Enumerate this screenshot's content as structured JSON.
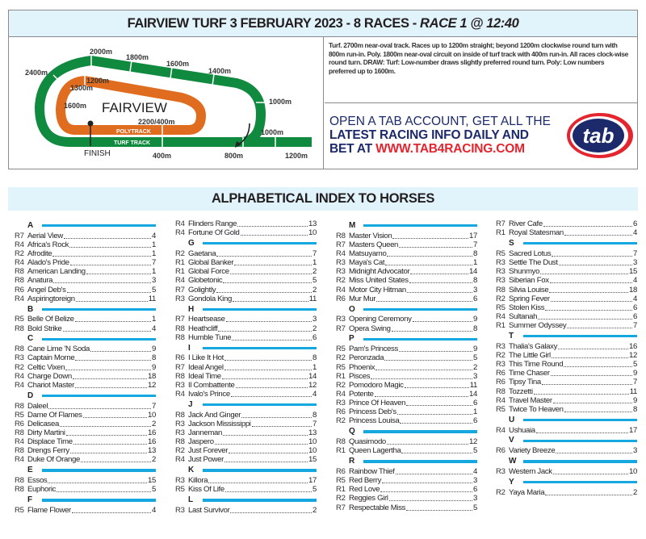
{
  "header": {
    "title_main": "FAIRVIEW TURF 3 FEBRUARY 2023 - 8 RACES - ",
    "title_race": "RACE 1 @ 12:40"
  },
  "track_map": {
    "venue": "FAIRVIEW",
    "turf_label": "TURF TRACK",
    "poly_label": "POLYTRACK",
    "finish_label": "FINISH",
    "colors": {
      "turf": "#0f8a3e",
      "poly": "#e06c1f"
    },
    "turf_markers": [
      "2400m",
      "2000m",
      "1800m",
      "1600m",
      "1400m",
      "1000m",
      "1000m",
      "1200m",
      "800m",
      "400m"
    ],
    "poly_markers": [
      "1200m",
      "1300m",
      "1600m",
      "2200/400m"
    ]
  },
  "track_info": "Turf. 2700m near-oval track. Races up to 1200m straight; beyond 1200m clockwise round turn with 800m run-in. Poly. 1800m near-oval circuit on inside of turf track with 400m run-in. All races clock-wise round turn. DRAW: Turf: Low-number draws slightly preferred round turn. Poly: Low numbers preferred up to 1600m.",
  "ad": {
    "line1": "OPEN A TAB ACCOUNT, GET ALL THE",
    "line2": "LATEST RACING INFO DAILY AND",
    "line3_prefix": "BET AT ",
    "url": "WWW.TAB4RACING.COM",
    "logo_text": "tab",
    "colors": {
      "navy": "#1c2a6b",
      "red": "#e4252f"
    }
  },
  "index": {
    "title": "ALPHABETICAL INDEX TO HORSES",
    "columns": [
      [
        {
          "letter": "A",
          "horses": [
            {
              "race": "R7",
              "name": "Aerial View",
              "no": "4"
            },
            {
              "race": "R4",
              "name": "Africa's Rock",
              "no": "1"
            },
            {
              "race": "R2",
              "name": "Afrodite",
              "no": "1"
            },
            {
              "race": "R4",
              "name": "Alado's Pride",
              "no": "7"
            },
            {
              "race": "R8",
              "name": "American Landing",
              "no": "1"
            },
            {
              "race": "R8",
              "name": "Anatura",
              "no": "3"
            },
            {
              "race": "R6",
              "name": "Angel Deb's",
              "no": "5"
            },
            {
              "race": "R4",
              "name": "Aspiringtoreign",
              "no": "11"
            }
          ]
        },
        {
          "letter": "B",
          "horses": [
            {
              "race": "R5",
              "name": "Belle Of Belize",
              "no": "1"
            },
            {
              "race": "R8",
              "name": "Bold Strike",
              "no": "4"
            }
          ]
        },
        {
          "letter": "C",
          "horses": [
            {
              "race": "R8",
              "name": "Cane Lime 'N Soda",
              "no": "9"
            },
            {
              "race": "R3",
              "name": "Captain Morne",
              "no": "8"
            },
            {
              "race": "R2",
              "name": "Celtic Vixen",
              "no": "9"
            },
            {
              "race": "R4",
              "name": "Charge Down",
              "no": "18"
            },
            {
              "race": "R4",
              "name": "Chariot Master",
              "no": "12"
            }
          ]
        },
        {
          "letter": "D",
          "horses": [
            {
              "race": "R8",
              "name": "Daleel",
              "no": "7"
            },
            {
              "race": "R5",
              "name": "Dame Of Flames",
              "no": "10"
            },
            {
              "race": "R6",
              "name": "Delicasea",
              "no": "2"
            },
            {
              "race": "R8",
              "name": "Dirty Martini",
              "no": "16"
            },
            {
              "race": "R4",
              "name": "Displace Time",
              "no": "16"
            },
            {
              "race": "R8",
              "name": "Drengs Ferry",
              "no": "13"
            },
            {
              "race": "R4",
              "name": "Duke Of Orange",
              "no": "2"
            }
          ]
        },
        {
          "letter": "E",
          "horses": [
            {
              "race": "R8",
              "name": "Essos",
              "no": "15"
            },
            {
              "race": "R8",
              "name": "Euphoric",
              "no": "5"
            }
          ]
        },
        {
          "letter": "F",
          "horses": [
            {
              "race": "R5",
              "name": "Flame Flower",
              "no": "4"
            }
          ]
        }
      ],
      [
        {
          "letter": "",
          "horses": [
            {
              "race": "R4",
              "name": "Flinders Range",
              "no": "13"
            },
            {
              "race": "R4",
              "name": "Fortune Of Gold",
              "no": "10"
            }
          ]
        },
        {
          "letter": "G",
          "horses": [
            {
              "race": "R2",
              "name": "Gaetana",
              "no": "7"
            },
            {
              "race": "R1",
              "name": "Global Banker",
              "no": "1"
            },
            {
              "race": "R1",
              "name": "Global Force",
              "no": "2"
            },
            {
              "race": "R4",
              "name": "Globetonic",
              "no": "5"
            },
            {
              "race": "R7",
              "name": "Golightly",
              "no": "2"
            },
            {
              "race": "R3",
              "name": "Gondola King",
              "no": "11"
            }
          ]
        },
        {
          "letter": "H",
          "horses": [
            {
              "race": "R7",
              "name": "Heartsease",
              "no": "3"
            },
            {
              "race": "R8",
              "name": "Heathcliff",
              "no": "2"
            },
            {
              "race": "R8",
              "name": "Humble Tune",
              "no": "6"
            }
          ]
        },
        {
          "letter": "I",
          "horses": [
            {
              "race": "R6",
              "name": "I Like It Hot",
              "no": "8"
            },
            {
              "race": "R7",
              "name": "Ideal Angel",
              "no": "1"
            },
            {
              "race": "R8",
              "name": "Ideal Time",
              "no": "14"
            },
            {
              "race": "R3",
              "name": "Il Combattente",
              "no": "12"
            },
            {
              "race": "R4",
              "name": "Ivalo's Prince",
              "no": "4"
            }
          ]
        },
        {
          "letter": "J",
          "horses": [
            {
              "race": "R8",
              "name": "Jack And Ginger",
              "no": "8"
            },
            {
              "race": "R3",
              "name": "Jackson Mississippi",
              "no": "7"
            },
            {
              "race": "R3",
              "name": "Janneman",
              "no": "13"
            },
            {
              "race": "R8",
              "name": "Jaspero",
              "no": "10"
            },
            {
              "race": "R2",
              "name": "Just Forever",
              "no": "10"
            },
            {
              "race": "R4",
              "name": "Just Power",
              "no": "15"
            }
          ]
        },
        {
          "letter": "K",
          "horses": [
            {
              "race": "R3",
              "name": "Killora",
              "no": "17"
            },
            {
              "race": "R5",
              "name": "Kiss Of Life",
              "no": "5"
            }
          ]
        },
        {
          "letter": "L",
          "horses": [
            {
              "race": "R3",
              "name": "Last Survivor",
              "no": "2"
            }
          ]
        }
      ],
      [
        {
          "letter": "M",
          "horses": [
            {
              "race": "R8",
              "name": "Master Vision",
              "no": "17"
            },
            {
              "race": "R7",
              "name": "Masters Queen",
              "no": "7"
            },
            {
              "race": "R4",
              "name": "Matsuyamo",
              "no": "8"
            },
            {
              "race": "R3",
              "name": "Maya's Cat",
              "no": "1"
            },
            {
              "race": "R3",
              "name": "Midnight Advocator",
              "no": "14"
            },
            {
              "race": "R2",
              "name": "Miss United States",
              "no": "8"
            },
            {
              "race": "R4",
              "name": "Motor City Hitman",
              "no": "3"
            },
            {
              "race": "R6",
              "name": "Mur Mur",
              "no": "6"
            }
          ]
        },
        {
          "letter": "O",
          "horses": [
            {
              "race": "R3",
              "name": "Opening Ceremony",
              "no": "9"
            },
            {
              "race": "R7",
              "name": "Opera Swing",
              "no": "8"
            }
          ]
        },
        {
          "letter": "P",
          "horses": [
            {
              "race": "R5",
              "name": "Pam's Princess",
              "no": "9"
            },
            {
              "race": "R2",
              "name": "Peronzada",
              "no": "5"
            },
            {
              "race": "R5",
              "name": "Phoenix",
              "no": "2"
            },
            {
              "race": "R1",
              "name": "Pisces",
              "no": "3"
            },
            {
              "race": "R2",
              "name": "Pomodoro Magic",
              "no": "11"
            },
            {
              "race": "R4",
              "name": "Potente",
              "no": "14"
            },
            {
              "race": "R3",
              "name": "Prince Of Heaven",
              "no": "6"
            },
            {
              "race": "R6",
              "name": "Princess Deb's",
              "no": "1"
            },
            {
              "race": "R2",
              "name": "Princess Louisa",
              "no": "6"
            }
          ]
        },
        {
          "letter": "Q",
          "horses": [
            {
              "race": "R8",
              "name": "Quasimodo",
              "no": "12"
            },
            {
              "race": "R1",
              "name": "Queen Lagertha",
              "no": "5"
            }
          ]
        },
        {
          "letter": "R",
          "horses": [
            {
              "race": "R6",
              "name": "Rainbow Thief",
              "no": "4"
            },
            {
              "race": "R5",
              "name": "Red Berry",
              "no": "3"
            },
            {
              "race": "R1",
              "name": "Red Love",
              "no": "6"
            },
            {
              "race": "R2",
              "name": "Reggies Girl",
              "no": "3"
            },
            {
              "race": "R7",
              "name": "Respectable Miss",
              "no": "5"
            }
          ]
        }
      ],
      [
        {
          "letter": "",
          "horses": [
            {
              "race": "R7",
              "name": "River Cafe",
              "no": "6"
            },
            {
              "race": "R1",
              "name": "Royal Statesman",
              "no": "4"
            }
          ]
        },
        {
          "letter": "S",
          "horses": [
            {
              "race": "R5",
              "name": "Sacred Lotus",
              "no": "7"
            },
            {
              "race": "R3",
              "name": "Settle The Dust",
              "no": "3"
            },
            {
              "race": "R3",
              "name": "Shunmyo",
              "no": "15"
            },
            {
              "race": "R3",
              "name": "Siberian Fox",
              "no": "4"
            },
            {
              "race": "R8",
              "name": "Silvia Louise",
              "no": "18"
            },
            {
              "race": "R2",
              "name": "Spring Fever",
              "no": "4"
            },
            {
              "race": "R5",
              "name": "Stolen Kiss",
              "no": "6"
            },
            {
              "race": "R4",
              "name": "Sultanah",
              "no": "6"
            },
            {
              "race": "R1",
              "name": "Summer Odyssey",
              "no": "7"
            }
          ]
        },
        {
          "letter": "T",
          "horses": [
            {
              "race": "R3",
              "name": "Thalia's Galaxy",
              "no": "16"
            },
            {
              "race": "R2",
              "name": "The Little Girl",
              "no": "12"
            },
            {
              "race": "R3",
              "name": "This Time Round",
              "no": "5"
            },
            {
              "race": "R6",
              "name": "Time Chaser",
              "no": "9"
            },
            {
              "race": "R6",
              "name": "Tipsy Tina",
              "no": "7"
            },
            {
              "race": "R8",
              "name": "Tozzetti",
              "no": "11"
            },
            {
              "race": "R4",
              "name": "Travel Master",
              "no": "9"
            },
            {
              "race": "R5",
              "name": "Twice To Heaven",
              "no": "8"
            }
          ]
        },
        {
          "letter": "U",
          "horses": [
            {
              "race": "R4",
              "name": "Ushuaia",
              "no": "17"
            }
          ]
        },
        {
          "letter": "V",
          "horses": [
            {
              "race": "R6",
              "name": "Variety Breeze",
              "no": "3"
            }
          ]
        },
        {
          "letter": "W",
          "horses": [
            {
              "race": "R3",
              "name": "Western Jack",
              "no": "10"
            }
          ]
        },
        {
          "letter": "Y",
          "horses": [
            {
              "race": "R2",
              "name": "Yaya Maria",
              "no": "2"
            }
          ]
        }
      ]
    ]
  }
}
